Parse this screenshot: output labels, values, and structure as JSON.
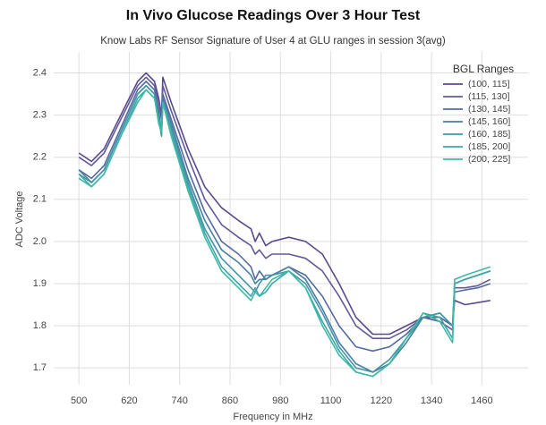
{
  "chart_data": {
    "type": "line",
    "title": "In Vivo Glucose Readings Over 3 Hour Test",
    "subtitle": "Know Labs RF Sensor Signature of User 4 at GLU ranges in session 3(avg)",
    "x_label": "Frequency in MHz",
    "y_label": "ADC Voltage",
    "legend_title": "BGL Ranges",
    "legend": "upper right",
    "grid": true,
    "x": [
      500,
      530,
      560,
      600,
      640,
      660,
      680,
      690,
      697,
      700,
      720,
      760,
      800,
      840,
      880,
      910,
      920,
      930,
      945,
      960,
      1000,
      1040,
      1080,
      1120,
      1160,
      1200,
      1240,
      1280,
      1320,
      1360,
      1390,
      1395,
      1420,
      1450,
      1480
    ],
    "xlim": [
      440,
      1570
    ],
    "xticks": [
      500,
      620,
      740,
      860,
      980,
      1100,
      1220,
      1340,
      1460
    ],
    "ylim": [
      1.66,
      2.45
    ],
    "yticks": [
      1.7,
      1.8,
      1.9,
      {
        "value": 2,
        "label": "2.0"
      },
      2.1,
      2.2,
      2.3,
      2.4
    ],
    "series": [
      {
        "name": "(100, 115]",
        "color": "#5b4a8b",
        "values": [
          2.21,
          2.19,
          2.22,
          2.3,
          2.38,
          2.4,
          2.38,
          2.34,
          2.3,
          2.39,
          2.33,
          2.22,
          2.13,
          2.08,
          2.05,
          2.03,
          2.0,
          2.02,
          1.99,
          2.0,
          2.01,
          2.0,
          1.97,
          1.9,
          1.82,
          1.78,
          1.78,
          1.8,
          1.82,
          1.82,
          1.8,
          1.86,
          1.85,
          1.855,
          1.86
        ]
      },
      {
        "name": "(115, 130]",
        "color": "#625a98",
        "values": [
          2.2,
          2.18,
          2.21,
          2.29,
          2.37,
          2.39,
          2.37,
          2.33,
          2.29,
          2.37,
          2.31,
          2.2,
          2.1,
          2.04,
          2.01,
          1.99,
          1.97,
          1.98,
          1.96,
          1.97,
          1.97,
          1.96,
          1.93,
          1.87,
          1.8,
          1.77,
          1.77,
          1.79,
          1.82,
          1.81,
          1.79,
          1.89,
          1.89,
          1.895,
          1.91
        ]
      },
      {
        "name": "(130, 145]",
        "color": "#536b9e",
        "values": [
          2.17,
          2.15,
          2.18,
          2.27,
          2.36,
          2.38,
          2.36,
          2.31,
          2.26,
          2.35,
          2.29,
          2.17,
          2.07,
          2.0,
          1.97,
          1.94,
          1.91,
          1.93,
          1.91,
          1.92,
          1.94,
          1.92,
          1.87,
          1.8,
          1.75,
          1.74,
          1.75,
          1.78,
          1.82,
          1.82,
          1.8,
          1.88,
          1.885,
          1.89,
          1.9
        ]
      },
      {
        "name": "(145, 160]",
        "color": "#4a80a3",
        "values": [
          2.17,
          2.14,
          2.17,
          2.26,
          2.35,
          2.37,
          2.35,
          2.3,
          2.26,
          2.34,
          2.28,
          2.15,
          2.05,
          1.98,
          1.95,
          1.92,
          1.9,
          1.91,
          1.91,
          1.92,
          1.94,
          1.91,
          1.84,
          1.76,
          1.71,
          1.69,
          1.71,
          1.76,
          1.82,
          1.83,
          1.8,
          1.9,
          1.91,
          1.92,
          1.93
        ]
      },
      {
        "name": "(160, 185]",
        "color": "#4494a8",
        "values": [
          2.16,
          2.14,
          2.17,
          2.26,
          2.35,
          2.37,
          2.35,
          2.29,
          2.25,
          2.33,
          2.27,
          2.14,
          2.03,
          1.96,
          1.92,
          1.89,
          1.88,
          1.9,
          1.92,
          1.92,
          1.93,
          1.9,
          1.83,
          1.75,
          1.7,
          1.69,
          1.72,
          1.77,
          1.82,
          1.83,
          1.8,
          1.9,
          1.91,
          1.92,
          1.93
        ]
      },
      {
        "name": "(185, 200]",
        "color": "#3ea7a8",
        "values": [
          2.16,
          2.13,
          2.16,
          2.25,
          2.34,
          2.36,
          2.34,
          2.29,
          2.27,
          2.33,
          2.26,
          2.13,
          2.02,
          1.94,
          1.9,
          1.87,
          1.89,
          1.87,
          1.88,
          1.9,
          1.93,
          1.89,
          1.81,
          1.74,
          1.69,
          1.68,
          1.71,
          1.77,
          1.83,
          1.82,
          1.77,
          1.9,
          1.91,
          1.92,
          1.93
        ]
      },
      {
        "name": "(200, 225]",
        "color": "#3dbaa5",
        "values": [
          2.15,
          2.13,
          2.16,
          2.25,
          2.33,
          2.36,
          2.34,
          2.28,
          2.26,
          2.33,
          2.25,
          2.12,
          2.01,
          1.93,
          1.89,
          1.86,
          1.88,
          1.87,
          1.89,
          1.91,
          1.93,
          1.89,
          1.8,
          1.73,
          1.69,
          1.68,
          1.71,
          1.77,
          1.83,
          1.81,
          1.76,
          1.91,
          1.92,
          1.93,
          1.94
        ]
      }
    ]
  }
}
